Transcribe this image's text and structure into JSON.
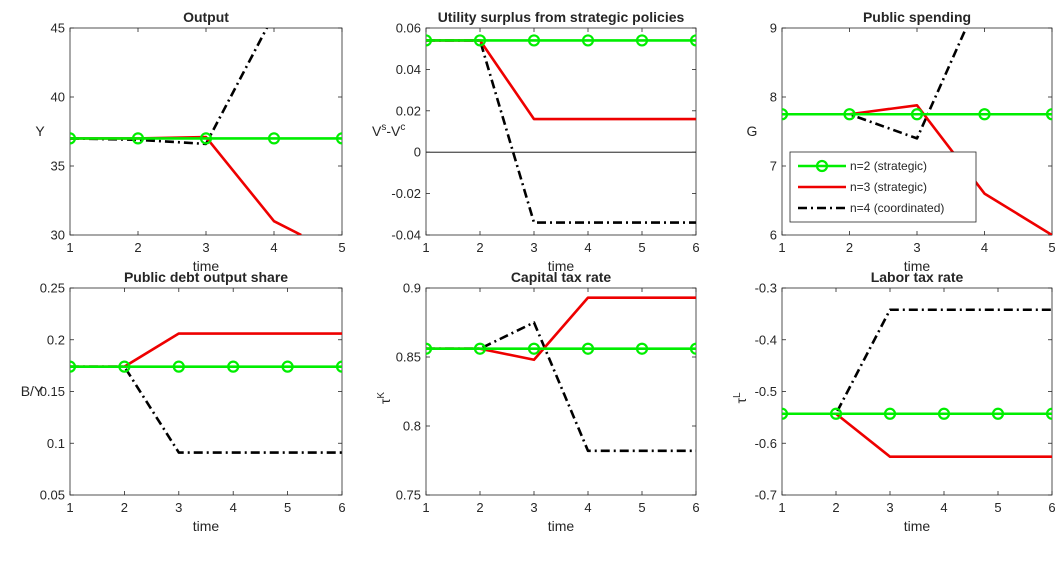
{
  "legend": {
    "entries": [
      {
        "label": "n=2 (strategic)",
        "color": "#00ee00",
        "dash": "solid",
        "marker": "circle"
      },
      {
        "label": "n=3 (strategic)",
        "color": "#ee0000",
        "dash": "solid",
        "marker": "none"
      },
      {
        "label": "n=4 (coordinated)",
        "color": "#000000",
        "dash": "dashdot",
        "marker": "none"
      }
    ],
    "placement": "inside panel 3, lower-left"
  },
  "chart_data": [
    {
      "type": "line",
      "title": "Output",
      "xlabel": "time",
      "ylabel": "Y",
      "xlim": [
        1,
        5
      ],
      "ylim": [
        30,
        45
      ],
      "xticks": [
        "1",
        "2",
        "3",
        "4",
        "5"
      ],
      "yticks": [
        "30",
        "35",
        "40",
        "45"
      ],
      "grid": false,
      "series": [
        {
          "name": "n=4 (coordinated)",
          "x": [
            1,
            2,
            3,
            4
          ],
          "y": [
            37.0,
            36.9,
            36.6,
            46.0
          ]
        },
        {
          "name": "n=3 (strategic)",
          "x": [
            1,
            2,
            3,
            4,
            4.4
          ],
          "y": [
            37.0,
            37.0,
            37.1,
            31.0,
            30.0
          ]
        },
        {
          "name": "n=2 (strategic)",
          "x": [
            1,
            2,
            3,
            4,
            5
          ],
          "y": [
            37.0,
            37.0,
            37.0,
            37.0,
            37.0
          ]
        }
      ]
    },
    {
      "type": "line",
      "title": "Utility surplus from strategic policies",
      "xlabel": "time",
      "ylabel": "V",
      "ylabel_sup1": "s",
      "ylabel_mid": "-V",
      "ylabel_sup2": "c",
      "xlim": [
        1,
        6
      ],
      "ylim": [
        -0.04,
        0.06
      ],
      "xticks": [
        "1",
        "2",
        "3",
        "4",
        "5",
        "6"
      ],
      "yticks": [
        "-0.04",
        "-0.02",
        "0",
        "0.02",
        "0.04",
        "0.06"
      ],
      "zero_line": true,
      "grid": false,
      "series": [
        {
          "name": "n=4 (coordinated)",
          "x": [
            1,
            2,
            3,
            4,
            5,
            6
          ],
          "y": [
            0.054,
            0.054,
            -0.034,
            -0.034,
            -0.034,
            -0.034
          ]
        },
        {
          "name": "n=3 (strategic)",
          "x": [
            1,
            2,
            3,
            4,
            5,
            6
          ],
          "y": [
            0.054,
            0.054,
            0.016,
            0.016,
            0.016,
            0.016
          ]
        },
        {
          "name": "n=2 (strategic)",
          "x": [
            1,
            2,
            3,
            4,
            5,
            6
          ],
          "y": [
            0.054,
            0.054,
            0.054,
            0.054,
            0.054,
            0.054
          ]
        }
      ]
    },
    {
      "type": "line",
      "title": "Public spending",
      "xlabel": "time",
      "ylabel": "G",
      "xlim": [
        1,
        5
      ],
      "ylim": [
        6,
        9
      ],
      "xticks": [
        "1",
        "2",
        "3",
        "4",
        "5"
      ],
      "yticks": [
        "6",
        "7",
        "8",
        "9"
      ],
      "grid": false,
      "series": [
        {
          "name": "n=4 (coordinated)",
          "x": [
            1,
            2,
            3,
            4
          ],
          "y": [
            7.75,
            7.75,
            7.4,
            9.6
          ]
        },
        {
          "name": "n=3 (strategic)",
          "x": [
            1,
            2,
            3,
            4,
            5
          ],
          "y": [
            7.75,
            7.75,
            7.88,
            6.6,
            6.0
          ]
        },
        {
          "name": "n=2 (strategic)",
          "x": [
            1,
            2,
            3,
            4,
            5
          ],
          "y": [
            7.75,
            7.75,
            7.75,
            7.75,
            7.75
          ]
        }
      ]
    },
    {
      "type": "line",
      "title": "Public debt output share",
      "xlabel": "time",
      "ylabel": "B/Y",
      "xlim": [
        1,
        6
      ],
      "ylim": [
        0.05,
        0.25
      ],
      "xticks": [
        "1",
        "2",
        "3",
        "4",
        "5",
        "6"
      ],
      "yticks": [
        "0.05",
        "0.1",
        "0.15",
        "0.2",
        "0.25"
      ],
      "grid": false,
      "series": [
        {
          "name": "n=4 (coordinated)",
          "x": [
            1,
            2,
            3,
            4,
            5,
            6
          ],
          "y": [
            0.174,
            0.174,
            0.091,
            0.091,
            0.091,
            0.091
          ]
        },
        {
          "name": "n=3 (strategic)",
          "x": [
            1,
            2,
            3,
            4,
            5,
            6
          ],
          "y": [
            0.174,
            0.174,
            0.206,
            0.206,
            0.206,
            0.206
          ]
        },
        {
          "name": "n=2 (strategic)",
          "x": [
            1,
            2,
            3,
            4,
            5,
            6
          ],
          "y": [
            0.174,
            0.174,
            0.174,
            0.174,
            0.174,
            0.174
          ]
        }
      ]
    },
    {
      "type": "line",
      "title": "Capital tax rate",
      "xlabel": "time",
      "ylabel": "τ",
      "ylabel_sup": "K",
      "xlim": [
        1,
        6
      ],
      "ylim": [
        0.75,
        0.9
      ],
      "xticks": [
        "1",
        "2",
        "3",
        "4",
        "5",
        "6"
      ],
      "yticks": [
        "0.75",
        "0.8",
        "0.85",
        "0.9"
      ],
      "grid": false,
      "series": [
        {
          "name": "n=4 (coordinated)",
          "x": [
            1,
            2,
            3,
            4,
            5,
            6
          ],
          "y": [
            0.856,
            0.856,
            0.875,
            0.782,
            0.782,
            0.782
          ]
        },
        {
          "name": "n=3 (strategic)",
          "x": [
            1,
            2,
            3,
            4,
            5,
            6
          ],
          "y": [
            0.856,
            0.856,
            0.848,
            0.893,
            0.893,
            0.893
          ]
        },
        {
          "name": "n=2 (strategic)",
          "x": [
            1,
            2,
            3,
            4,
            5,
            6
          ],
          "y": [
            0.856,
            0.856,
            0.856,
            0.856,
            0.856,
            0.856
          ]
        }
      ]
    },
    {
      "type": "line",
      "title": "Labor tax rate",
      "xlabel": "time",
      "ylabel": "τ",
      "ylabel_sup": "L",
      "xlim": [
        1,
        6
      ],
      "ylim": [
        -0.7,
        -0.3
      ],
      "xticks": [
        "1",
        "2",
        "3",
        "4",
        "5",
        "6"
      ],
      "yticks": [
        "-0.7",
        "-0.6",
        "-0.5",
        "-0.4",
        "-0.3"
      ],
      "grid": false,
      "series": [
        {
          "name": "n=4 (coordinated)",
          "x": [
            1,
            2,
            3,
            4,
            5,
            6
          ],
          "y": [
            -0.543,
            -0.543,
            -0.342,
            -0.342,
            -0.342,
            -0.342
          ]
        },
        {
          "name": "n=3 (strategic)",
          "x": [
            1,
            2,
            3,
            4,
            5,
            6
          ],
          "y": [
            -0.543,
            -0.543,
            -0.626,
            -0.626,
            -0.626,
            -0.626
          ]
        },
        {
          "name": "n=2 (strategic)",
          "x": [
            1,
            2,
            3,
            4,
            5,
            6
          ],
          "y": [
            -0.543,
            -0.543,
            -0.543,
            -0.543,
            -0.543,
            -0.543
          ]
        }
      ]
    }
  ]
}
